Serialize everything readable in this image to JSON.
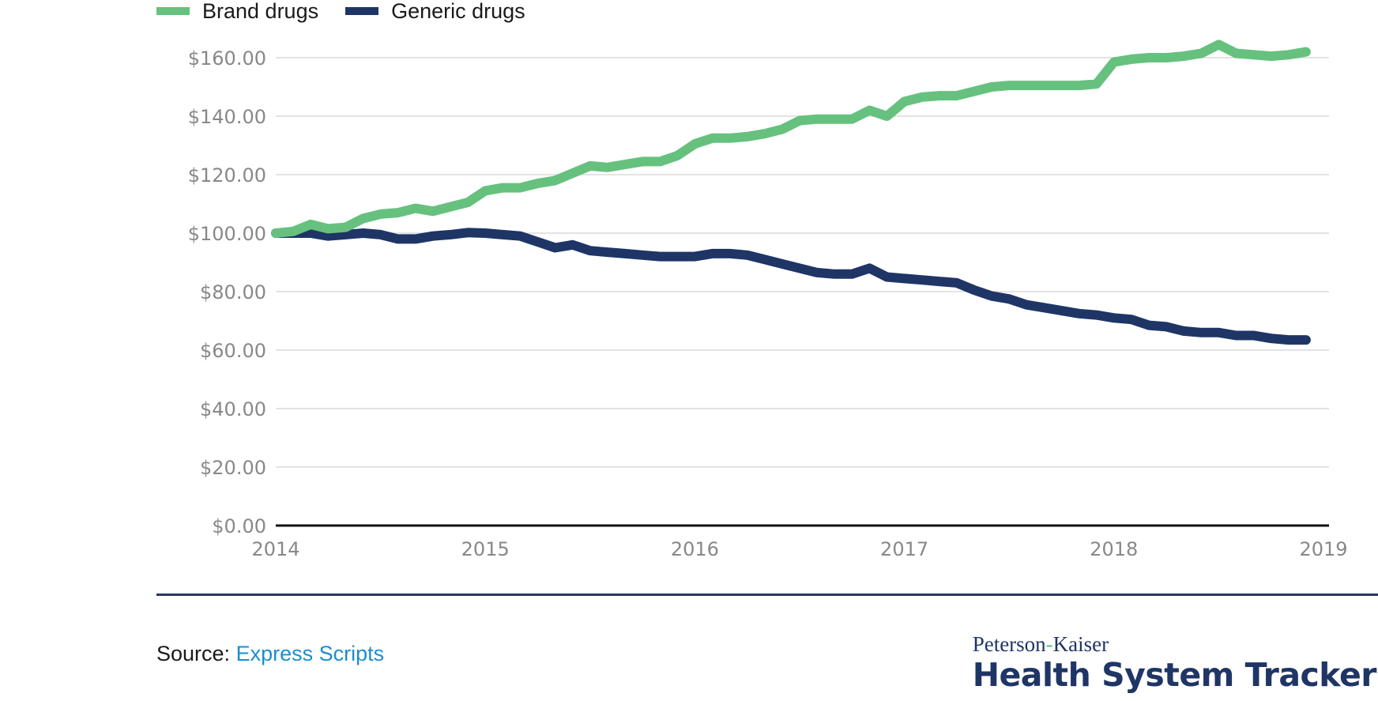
{
  "chart_data": {
    "type": "line",
    "title": "",
    "xlabel": "",
    "ylabel": "",
    "ylim": [
      0,
      160
    ],
    "yticks": [
      0,
      20,
      40,
      60,
      80,
      100,
      120,
      140,
      160
    ],
    "ytick_labels": [
      "$0.00",
      "$20.00",
      "$40.00",
      "$60.00",
      "$80.00",
      "$100.00",
      "$120.00",
      "$140.00",
      "$160.00"
    ],
    "xlim": [
      2014,
      2019
    ],
    "xticks": [
      2014,
      2015,
      2016,
      2017,
      2018,
      2019
    ],
    "xtick_labels": [
      "2014",
      "2015",
      "2016",
      "2017",
      "2018",
      "2019"
    ],
    "grid": true,
    "legend_position": "top-left",
    "x_description": "Monthly, Jan 2014 through Dec 2018",
    "series": [
      {
        "name": "Brand drugs",
        "color": "#66c17e",
        "values": [
          100,
          100.6,
          103,
          101.5,
          102,
          105,
          106.5,
          107,
          108.5,
          107.5,
          109,
          110.5,
          114.5,
          115.5,
          115.5,
          117,
          118,
          120.5,
          123,
          122.5,
          123.5,
          124.5,
          124.5,
          126.5,
          130.5,
          132.5,
          132.5,
          133,
          134,
          135.5,
          138.5,
          139,
          139,
          139,
          142,
          140,
          145,
          146.5,
          147,
          147,
          148.5,
          150,
          150.5,
          150.5,
          150.5,
          150.5,
          150.5,
          151,
          158.5,
          159.5,
          160,
          160,
          160.5,
          161.5,
          164.5,
          161.5,
          161,
          160.5,
          161,
          162
        ]
      },
      {
        "name": "Generic drugs",
        "color": "#1e3566",
        "values": [
          100,
          100,
          100,
          99,
          99.5,
          100,
          99.5,
          98,
          98,
          99,
          99.5,
          100.2,
          100,
          99.5,
          99,
          97,
          95,
          96,
          94,
          93.5,
          93,
          92.5,
          92,
          92,
          92,
          93,
          93,
          92.5,
          91,
          89.5,
          88,
          86.5,
          86,
          86,
          88,
          85,
          84.5,
          84,
          83.5,
          83,
          80.5,
          78.5,
          77.5,
          75.5,
          74.5,
          73.5,
          72.5,
          72,
          71,
          70.5,
          68.5,
          68,
          66.5,
          66,
          66,
          65,
          65,
          64,
          63.5,
          63.5
        ]
      }
    ]
  },
  "legend": {
    "items": [
      {
        "label": "Brand drugs",
        "color": "#66c17e"
      },
      {
        "label": "Generic drugs",
        "color": "#1e3566"
      }
    ]
  },
  "footer": {
    "source_prefix": "Source:",
    "source_link": "Express Scripts",
    "brand_top_left": "Peterson",
    "brand_hyphen": "-",
    "brand_top_right": "Kaiser",
    "brand_bottom": "Health System Tracker"
  },
  "colors": {
    "brand_green": "#66c17e",
    "navy": "#1e3566",
    "link_blue": "#1b8ecf",
    "gridline": "#e3e3e3",
    "axis": "#111111",
    "tick_text": "#888888"
  }
}
